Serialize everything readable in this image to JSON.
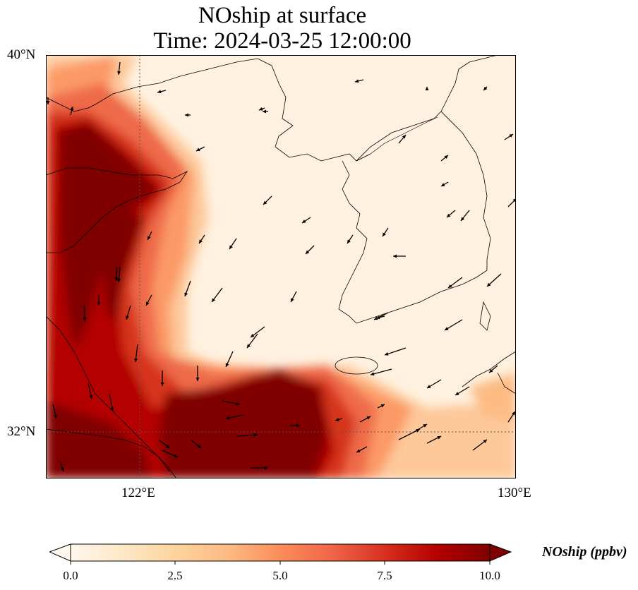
{
  "title_line1": "NOship at surface",
  "title_line2": "Time: 2024-03-25 12:00:00",
  "lat_labels": [
    "40°N",
    "32°N"
  ],
  "lon_labels": [
    "122°E",
    "130°E"
  ],
  "colorbar": {
    "label": "NOship (ppbv)",
    "ticks": [
      "0.0",
      "2.5",
      "5.0",
      "7.5",
      "10.0"
    ],
    "min": 0,
    "max": 10,
    "colormap": "OrRd",
    "colors": [
      "#fff7ec",
      "#fee8c8",
      "#fdd49e",
      "#fdbb84",
      "#fc8d59",
      "#ef6548",
      "#d7301f",
      "#b30000",
      "#7f0000"
    ]
  },
  "map": {
    "lon_range": [
      120,
      130
    ],
    "lat_range": [
      31,
      40
    ],
    "gridlines": [
      "122°E",
      "32°N"
    ],
    "features": [
      "coastlines",
      "NOship field",
      "wind vectors"
    ]
  }
}
